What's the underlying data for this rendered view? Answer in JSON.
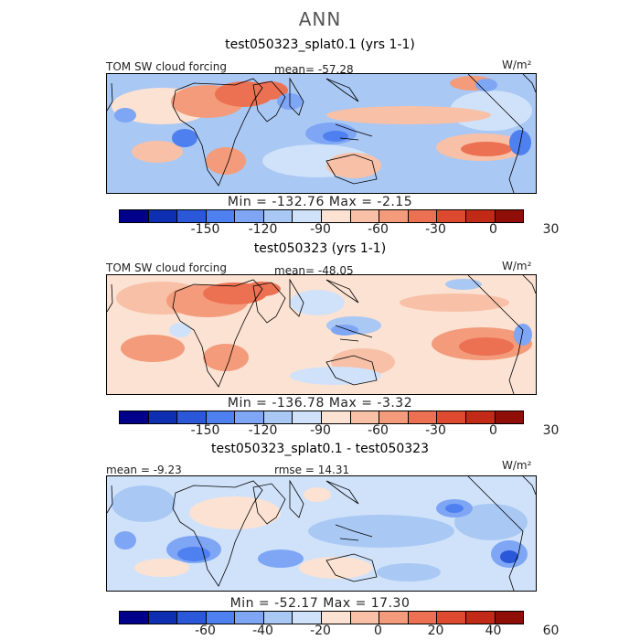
{
  "figure": {
    "title": "ANN",
    "colors": [
      "#00008b",
      "#0f2fb3",
      "#2a58d8",
      "#4f80f0",
      "#7ea6f5",
      "#a9c8f4",
      "#d0e2fa",
      "#fbe2d2",
      "#f8c0a6",
      "#f39b7a",
      "#ec7153",
      "#dd4a2f",
      "#c02a16",
      "#8f0e08"
    ]
  },
  "panels": [
    {
      "title": "test050323_splat0.1 (yrs 1-1)",
      "left_label": "TOM SW cloud forcing",
      "stat_label": "mean= -57.28",
      "units": "W/m²",
      "min_max": "Min = -132.76  Max =  -2.15",
      "cbar_ticks": [
        "-150",
        "-120",
        "-90",
        "-60",
        "-30",
        "0",
        "30"
      ]
    },
    {
      "title": "test050323 (yrs 1-1)",
      "left_label": "TOM SW cloud forcing",
      "stat_label": "mean= -48.05",
      "units": "W/m²",
      "min_max": "Min = -136.78  Max =  -3.32",
      "cbar_ticks": [
        "-150",
        "-120",
        "-90",
        "-60",
        "-30",
        "0",
        "30"
      ]
    },
    {
      "title": "test050323_splat0.1 - test050323",
      "left_label": "mean =  -9.23",
      "stat_label": "rmse =  14.31",
      "units": "W/m²",
      "min_max": "Min = -52.17  Max =  17.30",
      "cbar_ticks": [
        "-60",
        "-40",
        "-20",
        "0",
        "20",
        "40",
        "60"
      ]
    }
  ]
}
